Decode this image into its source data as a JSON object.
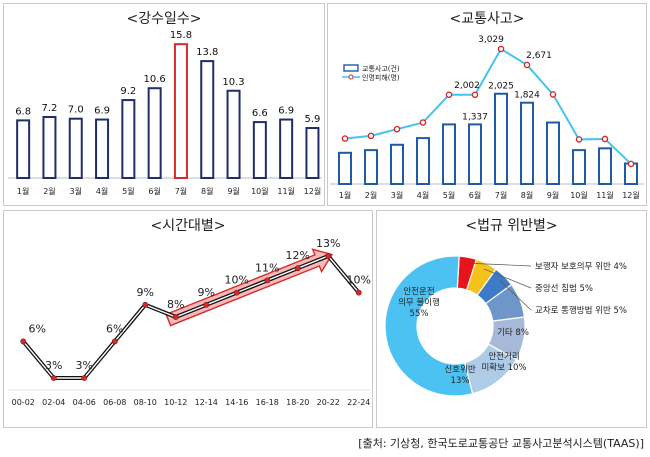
{
  "rain": {
    "title": "<강수일수>",
    "chart_data": {
      "type": "bar",
      "title": "<강수일수>",
      "categories": [
        "1월",
        "2월",
        "3월",
        "4월",
        "5월",
        "6월",
        "7월",
        "8월",
        "9월",
        "10월",
        "11월",
        "12월"
      ],
      "values": [
        6.8,
        7.2,
        7.0,
        6.9,
        9.2,
        10.6,
        15.8,
        13.8,
        10.3,
        6.6,
        6.9,
        5.9
      ],
      "labels": [
        "6.8",
        "7.2",
        "7.0",
        "6.9",
        "9.2",
        "10.6",
        "15.8",
        "13.8",
        "10.3",
        "6.6",
        "6.9",
        "5.9"
      ],
      "highlight_index": 6,
      "ylim": [
        0,
        17
      ],
      "colors": {
        "bar": "#1f2d6b",
        "highlight": "#d42c2c"
      }
    }
  },
  "traffic": {
    "title": "<교통사고>",
    "chart_data": {
      "type": "bar",
      "title": "<교통사고>",
      "categories": [
        "1월",
        "2월",
        "3월",
        "4월",
        "5월",
        "6월",
        "7월",
        "8월",
        "9월",
        "10월",
        "11월",
        "12월"
      ],
      "series": [
        {
          "name": "교통사고(건)",
          "type": "bar",
          "values": [
            700,
            760,
            880,
            1030,
            1337,
            1337,
            2025,
            1824,
            1380,
            760,
            800,
            460
          ],
          "labels": [
            "",
            "",
            "",
            "",
            "",
            "1,337",
            "2,025",
            "1,824",
            "",
            "",
            "",
            ""
          ]
        },
        {
          "name": "인명피해(명)",
          "type": "line",
          "values": [
            1020,
            1080,
            1230,
            1380,
            2002,
            2002,
            3029,
            2671,
            2010,
            1000,
            1010,
            450
          ],
          "labels": [
            "",
            "",
            "",
            "",
            "",
            "2,002",
            "3,029",
            "2,671",
            "",
            "",
            "",
            ""
          ]
        }
      ],
      "ylim": [
        0,
        3400
      ],
      "legend": "top-left",
      "colors": {
        "bar": "#1f5aa6",
        "line": "#44c4f0",
        "marker": "#d42c2c"
      }
    }
  },
  "hourly": {
    "title": "<시간대별>",
    "chart_data": {
      "type": "line",
      "title": "<시간대별>",
      "categories": [
        "00-02",
        "02-04",
        "04-06",
        "06-08",
        "08-10",
        "10-12",
        "12-14",
        "14-16",
        "16-18",
        "18-20",
        "20-22",
        "22-24"
      ],
      "values": [
        6,
        3,
        3,
        6,
        9,
        8,
        9,
        10,
        11,
        12,
        13,
        10
      ],
      "labels": [
        "6%",
        "3%",
        "3%",
        "6%",
        "9%",
        "8%",
        "9%",
        "10%",
        "11%",
        "12%",
        "13%",
        "10%"
      ],
      "ylim": [
        0,
        15
      ],
      "highlight_range": [
        "10-12",
        "20-22"
      ],
      "colors": {
        "line": "#111111",
        "marker": "#d42c2c",
        "arrow_fill": "#f6b8b8",
        "arrow_stroke": "#d42c2c"
      }
    }
  },
  "violation": {
    "title": "<법규 위반별>",
    "chart_data": {
      "type": "pie",
      "title": "<법규 위반별>",
      "slices": [
        {
          "name": "보행자 보호의무 위반",
          "value": 4,
          "label": "보행자 보호의무 위반 4%",
          "color": "#e8141b"
        },
        {
          "name": "중앙선 침범",
          "value": 5,
          "label": "중앙선 침범 5%",
          "color": "#f5c21b"
        },
        {
          "name": "교차로 통행방법 위반",
          "value": 5,
          "label": "교차로 통행방법 위반 5%",
          "color": "#3d7bc6"
        },
        {
          "name": "기타",
          "value": 8,
          "label": "기타 8%",
          "color": "#6f96c8"
        },
        {
          "name": "안전거리 미확보",
          "value": 10,
          "label": "안전거리 미확보 10%",
          "color": "#a7b9d8"
        },
        {
          "name": "신호위반",
          "value": 13,
          "label": "신호위반 13%",
          "color": "#aecce8"
        },
        {
          "name": "안전운전 의무 불이행",
          "value": 55,
          "label": "안전운전 의무 불이행 55%",
          "color": "#4cc2f3"
        }
      ]
    }
  },
  "source": "[출처: 기상청, 한국도로교통공단  교통사고분석시스템(TAAS)]"
}
